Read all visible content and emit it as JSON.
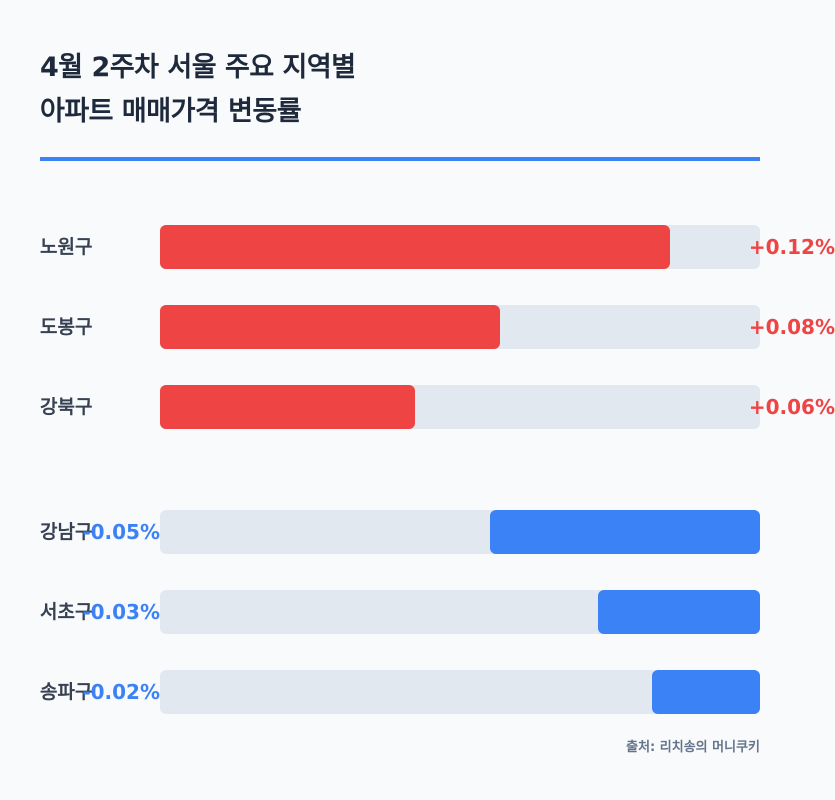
{
  "title": {
    "line1": "4월 2주차 서울 주요 지역별",
    "line2": "아파트 매매가격 변동률"
  },
  "colors": {
    "positive": "#ef4444",
    "negative": "#3b82f6",
    "track": "#e2e8f0",
    "title_rule": "#3b82f6"
  },
  "chart_data": {
    "type": "bar",
    "orientation": "horizontal",
    "title": "4월 2주차 서울 주요 지역별 아파트 매매가격 변동률",
    "unit": "%",
    "groups": [
      {
        "direction": "increase",
        "categories": [
          "노원구",
          "도봉구",
          "강북구"
        ],
        "values": [
          0.12,
          0.08,
          0.06
        ],
        "labels": [
          "+0.12%",
          "+0.08%",
          "+0.06%"
        ]
      },
      {
        "direction": "decrease",
        "categories": [
          "강남구",
          "서초구",
          "송파구"
        ],
        "values": [
          -0.05,
          -0.03,
          -0.02
        ],
        "labels": [
          "-0.05%",
          "-0.03%",
          "-0.02%"
        ]
      }
    ]
  },
  "source": "출처: 리치송의 머니쿠키"
}
